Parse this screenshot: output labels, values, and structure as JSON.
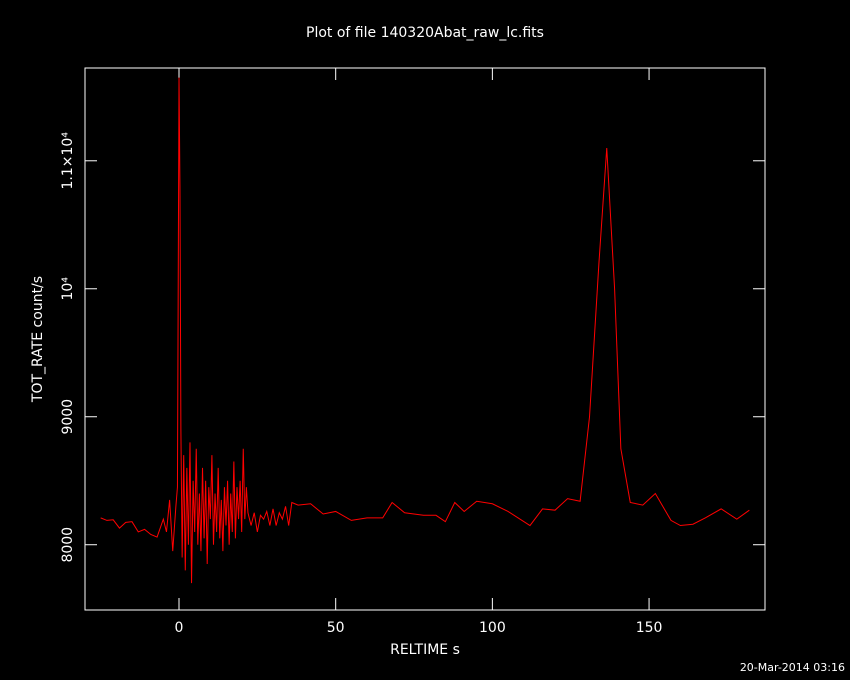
{
  "chart_data": {
    "type": "line",
    "title": "Plot of file 140320Abat_raw_lc.fits",
    "x_label": "RELTIME  s",
    "y_label": "TOT_RATE  count/s",
    "timestamp": "20-Mar-2014 03:16",
    "xlim": [
      -30,
      187
    ],
    "ylim": [
      7490,
      11725
    ],
    "xticks": [
      0,
      50,
      100,
      150
    ],
    "yticks": [
      8000,
      9000,
      {
        "value": 10000,
        "label": "10⁴"
      },
      {
        "value": 11000,
        "label": "1.1×10⁴"
      }
    ],
    "x": [
      -25,
      -23,
      -21,
      -19,
      -17,
      -15,
      -13,
      -11,
      -9,
      -7,
      -5,
      -4,
      -3,
      -2,
      -1,
      -0.5,
      0,
      0.3,
      0.6,
      1,
      1.5,
      2,
      2.5,
      3,
      3.5,
      4,
      4.5,
      5,
      5.5,
      6,
      6.5,
      7,
      7.5,
      8,
      8.5,
      9,
      9.5,
      10,
      10.5,
      11,
      11.5,
      12,
      12.5,
      13,
      13.5,
      14,
      14.5,
      15,
      15.5,
      16,
      16.5,
      17,
      17.5,
      18,
      18.5,
      19,
      19.5,
      20,
      20.5,
      21,
      21.5,
      22,
      23,
      24,
      25,
      26,
      27,
      28,
      29,
      30,
      31,
      32,
      33,
      34,
      35,
      36,
      38,
      42,
      46,
      50,
      55,
      60,
      65,
      68,
      72,
      78,
      82,
      85,
      88,
      91,
      95,
      100,
      105,
      112,
      116,
      120,
      124,
      128,
      131,
      134,
      136.5,
      139,
      141,
      144,
      148,
      152,
      157,
      160,
      164,
      168,
      173,
      178,
      182
    ],
    "series": [
      {
        "color": "#ff0000",
        "values": [
          8210,
          8190,
          8195,
          8130,
          8175,
          8180,
          8100,
          8120,
          8080,
          8060,
          8200,
          8100,
          8350,
          7950,
          8300,
          8450,
          11650,
          10800,
          8900,
          7900,
          8700,
          7800,
          8600,
          8000,
          8800,
          7700,
          8500,
          8100,
          8750,
          8000,
          8400,
          7950,
          8600,
          8050,
          8500,
          7850,
          8450,
          8200,
          8700,
          8000,
          8400,
          8100,
          8600,
          8050,
          8350,
          7950,
          8450,
          8150,
          8500,
          8000,
          8400,
          8100,
          8650,
          8050,
          8450,
          8200,
          8500,
          8100,
          8750,
          8200,
          8450,
          8250,
          8150,
          8250,
          8100,
          8230,
          8200,
          8260,
          8150,
          8280,
          8150,
          8250,
          8200,
          8300,
          8150,
          8330,
          8310,
          8320,
          8240,
          8260,
          8190,
          8210,
          8210,
          8330,
          8250,
          8230,
          8230,
          8180,
          8330,
          8260,
          8340,
          8320,
          8260,
          8150,
          8280,
          8270,
          8360,
          8340,
          9000,
          10200,
          11100,
          10000,
          8750,
          8330,
          8310,
          8400,
          8190,
          8150,
          8160,
          8210,
          8280,
          8200,
          8270
        ]
      }
    ]
  }
}
